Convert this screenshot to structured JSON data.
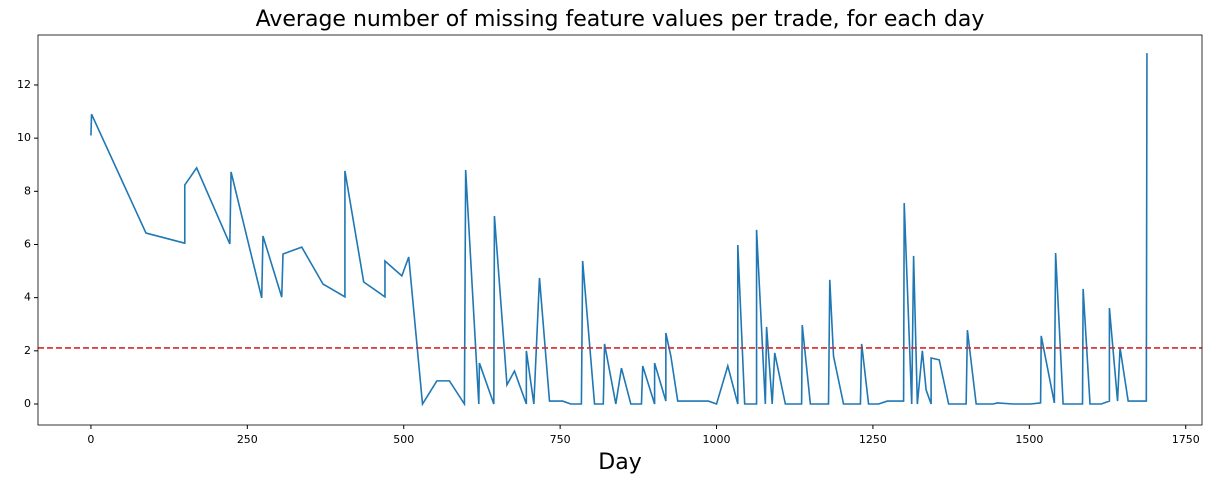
{
  "chart_data": {
    "type": "line",
    "title": "Average number of missing feature values per trade, for each day",
    "x_label": "Day",
    "x": [
      0,
      1,
      88,
      150,
      150,
      169,
      222,
      224,
      273,
      275,
      305,
      307,
      337,
      371,
      406,
      406,
      436,
      470,
      470,
      497,
      508,
      530,
      553,
      573,
      597,
      599,
      620,
      621,
      644,
      645,
      665,
      677,
      696,
      696,
      708,
      717,
      733,
      754,
      767,
      784,
      786,
      805,
      819,
      821,
      839,
      848,
      863,
      880,
      882,
      901,
      901,
      919,
      919,
      927,
      938,
      987,
      1000,
      1018,
      1034,
      1034,
      1045,
      1064,
      1064,
      1078,
      1080,
      1089,
      1093,
      1110,
      1136,
      1137,
      1150,
      1179,
      1181,
      1187,
      1203,
      1230,
      1232,
      1243,
      1259,
      1273,
      1299,
      1300,
      1312,
      1315,
      1321,
      1329,
      1335,
      1343,
      1343,
      1356,
      1371,
      1399,
      1401,
      1415,
      1442,
      1449,
      1474,
      1502,
      1518,
      1519,
      1540,
      1542,
      1554,
      1585,
      1586,
      1597,
      1615,
      1628,
      1628,
      1641,
      1645,
      1658,
      1687,
      1688
    ],
    "series": [
      {
        "color": "#1f77b4",
        "values": [
          10.1,
          10.9,
          6.43,
          6.05,
          8.24,
          8.88,
          6.02,
          8.73,
          3.99,
          6.32,
          4.02,
          5.64,
          5.9,
          4.51,
          4.03,
          8.77,
          4.59,
          4.03,
          5.38,
          4.82,
          5.53,
          0,
          0.87,
          0.87,
          0,
          8.8,
          0,
          1.54,
          0,
          7.07,
          0.72,
          1.24,
          0,
          2.0,
          0,
          4.74,
          0.11,
          0.11,
          0,
          0,
          5.38,
          0,
          0,
          2.26,
          0,
          1.35,
          0,
          0,
          1.43,
          0,
          1.54,
          0.11,
          2.67,
          1.8,
          0.11,
          0.11,
          0,
          1.43,
          0,
          5.98,
          0,
          0,
          6.55,
          0,
          2.9,
          0,
          1.92,
          0,
          0,
          2.97,
          0,
          0,
          4.67,
          1.8,
          0,
          0,
          2.26,
          0,
          0,
          0.11,
          0.11,
          7.56,
          0,
          5.57,
          0,
          2.0,
          0.53,
          0,
          1.73,
          1.66,
          0,
          0,
          2.78,
          0,
          0,
          0.04,
          0,
          0,
          0.04,
          2.56,
          0.04,
          5.68,
          0,
          0,
          4.33,
          0,
          0,
          0.11,
          3.61,
          0.11,
          2.11,
          0.11,
          0.11,
          13.2
        ]
      }
    ],
    "hlines": [
      {
        "value": 2.11,
        "color": "#d62728",
        "style": "dashed"
      }
    ],
    "xlim": [
      -84.6,
      1776
    ],
    "xticks": [
      0,
      250,
      500,
      750,
      1000,
      1250,
      1500,
      1750
    ],
    "ylim": [
      -0.79,
      13.88
    ],
    "yticks": [
      0,
      2,
      4,
      6,
      8,
      10,
      12
    ]
  }
}
